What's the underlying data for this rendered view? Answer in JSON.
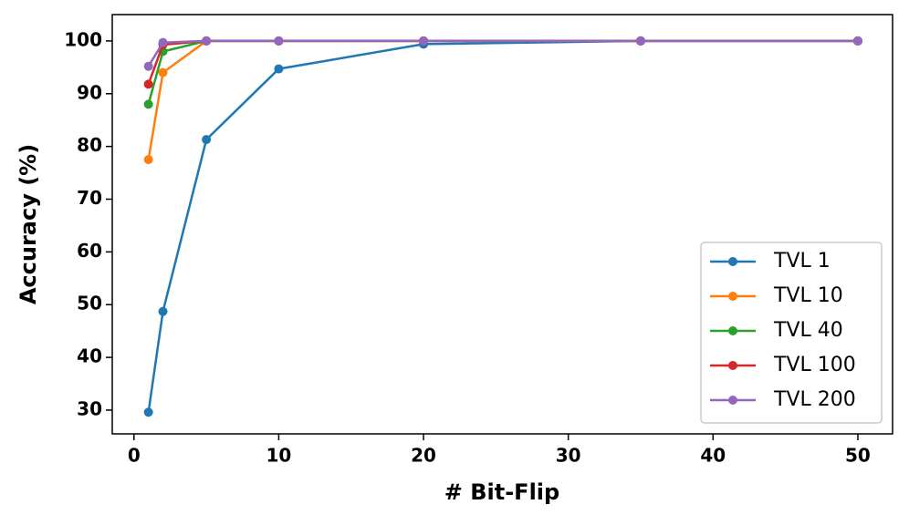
{
  "chart_data": {
    "type": "line",
    "xlabel": "# Bit-Flip",
    "ylabel": "Accuracy (%)",
    "x": [
      1,
      2,
      5,
      10,
      20,
      35,
      50
    ],
    "series": [
      {
        "name": "TVL 1",
        "color": "#1f77b4",
        "values": [
          29.6,
          48.7,
          81.3,
          94.7,
          99.4,
          100,
          100
        ]
      },
      {
        "name": "TVL 10",
        "color": "#ff7f0e",
        "values": [
          77.5,
          94.0,
          100,
          100,
          100,
          100,
          100
        ]
      },
      {
        "name": "TVL 40",
        "color": "#2ca02c",
        "values": [
          88.0,
          98.0,
          100,
          100,
          100,
          100,
          100
        ]
      },
      {
        "name": "TVL 100",
        "color": "#d62728",
        "values": [
          91.8,
          99.3,
          100,
          100,
          100,
          100,
          100
        ]
      },
      {
        "name": "TVL 200",
        "color": "#9467bd",
        "values": [
          95.2,
          99.7,
          100,
          100,
          100,
          100,
          100
        ]
      }
    ],
    "xlim": [
      -1.5,
      52.4
    ],
    "xticks": [
      0,
      10,
      20,
      30,
      40,
      50
    ],
    "ylim": [
      25.5,
      105
    ],
    "yticks": [
      30,
      40,
      50,
      60,
      70,
      80,
      90,
      100
    ],
    "grid": false,
    "legend": "lower right"
  }
}
